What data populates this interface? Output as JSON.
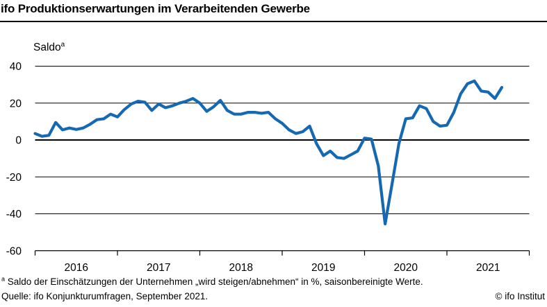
{
  "header": {
    "title": "ifo Produktionserwartungen im Verarbeitenden Gewerbe"
  },
  "chart": {
    "ylabel": "Saldo",
    "ylabel_sup": "a"
  },
  "chart_data": {
    "type": "line",
    "title": "ifo Produktionserwartungen im Verarbeitenden Gewerbe",
    "ylabel": "Saldo",
    "ylim": [
      -60,
      40
    ],
    "yticks": [
      40,
      20,
      0,
      -20,
      -40,
      -60
    ],
    "ytick_labels": [
      "40",
      "20",
      "0",
      "-20",
      "-40",
      "-60"
    ],
    "x_year_labels": [
      "2016",
      "2017",
      "2018",
      "2019",
      "2020",
      "2021"
    ],
    "grid": true,
    "line_color": "#1569b3",
    "series": [
      {
        "name": "Produktionserwartungen Saldo",
        "start": "2016-01",
        "end": "2021-09",
        "frequency": "monthly",
        "values": [
          3.5,
          2.0,
          2.5,
          9.5,
          5.5,
          6.5,
          5.7,
          6.5,
          8.5,
          11.0,
          11.5,
          14.0,
          12.5,
          16.5,
          19.5,
          21.0,
          20.5,
          16.0,
          19.5,
          17.5,
          18.5,
          20.0,
          21.0,
          22.5,
          20.0,
          15.5,
          18.0,
          21.5,
          16.0,
          14.0,
          14.0,
          15.0,
          15.0,
          14.5,
          15.0,
          11.5,
          9.0,
          5.5,
          3.5,
          4.5,
          7.5,
          -2.0,
          -8.5,
          -6.0,
          -9.5,
          -10.0,
          -8.0,
          -6.0,
          1.0,
          0.5,
          -14.0,
          -45.5,
          -24.0,
          -2.0,
          11.5,
          12.0,
          18.5,
          17.0,
          10.0,
          7.5,
          8.0,
          15.0,
          25.0,
          30.5,
          32.0,
          26.5,
          26.0,
          22.5,
          28.5
        ]
      }
    ]
  },
  "footer": {
    "footnote_sup": "a",
    "footnote_text": "Saldo der Einschätzungen der Unternehmen „wird steigen/abnehmen“ in %, saisonbereinigte Werte.",
    "source": "Quelle: ifo Konjunkturumfragen, September 2021.",
    "copyright": "© ifo Institut"
  }
}
